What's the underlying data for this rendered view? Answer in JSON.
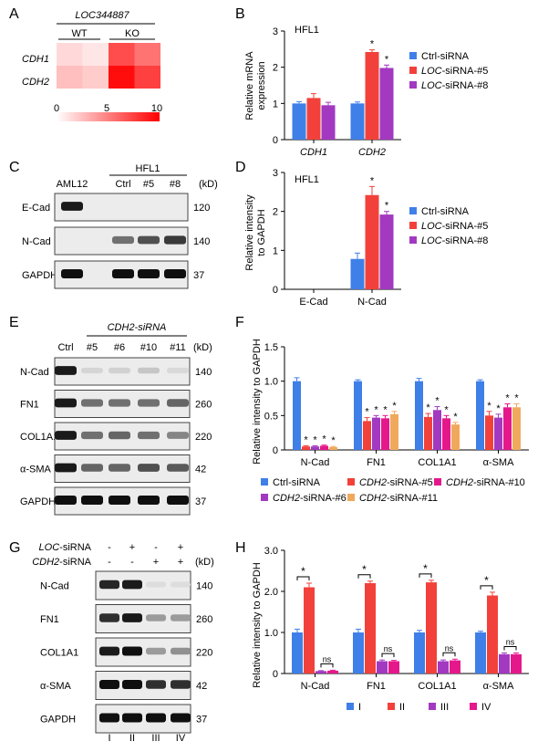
{
  "panels": {
    "A": {
      "letter": "A",
      "gene": "LOC344887",
      "groups": [
        "WT",
        "KO"
      ],
      "rows": [
        "CDH1",
        "CDH2"
      ],
      "cells": [
        [
          1.5,
          1.0,
          7.0,
          5.5
        ],
        [
          2.5,
          2.0,
          9.5,
          7.5
        ]
      ],
      "scale_ticks": [
        "0",
        "5",
        "10"
      ],
      "colors": {
        "low": "#ffffff",
        "high": "#ff0000"
      }
    },
    "B": {
      "letter": "B",
      "cell_line": "HFL1",
      "ylabel_1": "Relative mRNA",
      "ylabel_2": "expression",
      "legend": [
        {
          "prefix": "",
          "ital": "",
          "suffix": "Ctrl-siRNA",
          "color": "#3f7fe8"
        },
        {
          "prefix": "",
          "ital": "LOC",
          "suffix": "-siRNA-#5",
          "color": "#f2413a"
        },
        {
          "prefix": "",
          "ital": "LOC",
          "suffix": "-siRNA-#8",
          "color": "#a239c0"
        }
      ]
    },
    "C": {
      "letter": "C",
      "lanes": [
        "AML12",
        "Ctrl",
        "#5",
        "#8"
      ],
      "group_label": "HFL1",
      "kd_label": "(kD)",
      "rows": [
        {
          "label": "E-Cad",
          "kd": "120"
        },
        {
          "label": "N-Cad",
          "kd": "140"
        },
        {
          "label": "GAPDH",
          "kd": "37"
        }
      ]
    },
    "D": {
      "letter": "D",
      "cell_line": "HFL1",
      "ylabel_1": "Relative intensity",
      "ylabel_2": "to GAPDH",
      "legend": [
        {
          "prefix": "",
          "ital": "",
          "suffix": "Ctrl-siRNA",
          "color": "#3f7fe8"
        },
        {
          "prefix": "",
          "ital": "LOC",
          "suffix": "-siRNA-#5",
          "color": "#f2413a"
        },
        {
          "prefix": "",
          "ital": "LOC",
          "suffix": "-siRNA-#8",
          "color": "#a239c0"
        }
      ]
    },
    "E": {
      "letter": "E",
      "group_label": "CDH2-siRNA",
      "lanes": [
        "Ctrl",
        "#5",
        "#6",
        "#10",
        "#11"
      ],
      "kd_label": "(kD)",
      "rows": [
        {
          "label": "N-Cad",
          "kd": "140"
        },
        {
          "label": "FN1",
          "kd": "260"
        },
        {
          "label": "COL1A1",
          "kd": "220"
        },
        {
          "label": "α-SMA",
          "kd": "42"
        },
        {
          "label": "GAPDH",
          "kd": "37"
        }
      ]
    },
    "F": {
      "letter": "F",
      "ylabel": "Relative intensity to GAPDH",
      "legend": [
        {
          "prefix": "",
          "ital": "",
          "suffix": "Ctrl-siRNA",
          "color": "#3f7fe8"
        },
        {
          "prefix": "",
          "ital": "CDH2",
          "suffix": "-siRNA-#5",
          "color": "#f2413a"
        },
        {
          "prefix": "",
          "ital": "CDH2",
          "suffix": "-siRNA-#10",
          "color": "#e5188b"
        },
        {
          "prefix": "",
          "ital": "CDH2",
          "suffix": "-siRNA-#6",
          "color": "#a239c0"
        },
        {
          "prefix": "",
          "ital": "CDH2",
          "suffix": "-siRNA-#11",
          "color": "#f0a95c"
        }
      ]
    },
    "G": {
      "letter": "G",
      "treatments": [
        {
          "label_ital": "LOC",
          "label_suffix": "-siRNA",
          "signs": [
            "-",
            "+",
            "-",
            "+"
          ]
        },
        {
          "label_ital": "CDH2",
          "label_suffix": "-siRNA",
          "signs": [
            "-",
            "-",
            "+",
            "+"
          ]
        }
      ],
      "kd_label": "(kD)",
      "lane_numerals": [
        "I",
        "II",
        "III",
        "IV"
      ],
      "rows": [
        {
          "label": "N-Cad",
          "kd": "140"
        },
        {
          "label": "FN1",
          "kd": "260"
        },
        {
          "label": "COL1A1",
          "kd": "220"
        },
        {
          "label": "α-SMA",
          "kd": "42"
        },
        {
          "label": "GAPDH",
          "kd": "37"
        }
      ]
    },
    "H": {
      "letter": "H",
      "ylabel": "Relative intensity to GAPDH",
      "legend": [
        {
          "prefix": "",
          "ital": "",
          "suffix": "I",
          "color": "#3f7fe8"
        },
        {
          "prefix": "",
          "ital": "",
          "suffix": "II",
          "color": "#f2413a"
        },
        {
          "prefix": "",
          "ital": "",
          "suffix": "III",
          "color": "#a239c0"
        },
        {
          "prefix": "",
          "ital": "",
          "suffix": "IV",
          "color": "#e5188b"
        }
      ],
      "sig_labels": [
        "*",
        "ns"
      ]
    }
  },
  "chart_data": [
    {
      "panel": "B",
      "type": "bar",
      "categories": [
        "CDH1",
        "CDH2"
      ],
      "ylim": [
        0,
        3
      ],
      "yticks": [
        0,
        1,
        2,
        3
      ],
      "series": [
        {
          "name": "Ctrl-siRNA",
          "values": [
            1.0,
            1.0
          ],
          "errors": [
            0.05,
            0.04
          ],
          "color": "#3f7fe8"
        },
        {
          "name": "LOC-siRNA-#5",
          "values": [
            1.15,
            2.42
          ],
          "errors": [
            0.12,
            0.06
          ],
          "color": "#f2413a"
        },
        {
          "name": "LOC-siRNA-#8",
          "values": [
            0.95,
            1.98
          ],
          "errors": [
            0.08,
            0.08
          ],
          "color": "#a239c0"
        }
      ],
      "annotations": [
        [
          null,
          null
        ],
        [
          null,
          "*"
        ],
        [
          null,
          "*"
        ]
      ]
    },
    {
      "panel": "D",
      "type": "bar",
      "categories": [
        "E-Cad",
        "N-Cad"
      ],
      "ylim": [
        0,
        3
      ],
      "yticks": [
        0,
        1,
        2,
        3
      ],
      "series": [
        {
          "name": "Ctrl-siRNA",
          "values": [
            0,
            0.78
          ],
          "errors": [
            0,
            0.15
          ],
          "color": "#3f7fe8"
        },
        {
          "name": "LOC-siRNA-#5",
          "values": [
            0,
            2.42
          ],
          "errors": [
            0,
            0.22
          ],
          "color": "#f2413a"
        },
        {
          "name": "LOC-siRNA-#8",
          "values": [
            0,
            1.92
          ],
          "errors": [
            0,
            0.08
          ],
          "color": "#a239c0"
        }
      ],
      "annotations": [
        [
          null,
          null
        ],
        [
          null,
          "*"
        ],
        [
          null,
          "*"
        ]
      ]
    },
    {
      "panel": "F",
      "type": "bar",
      "categories": [
        "N-Cad",
        "FN1",
        "COL1A1",
        "α-SMA"
      ],
      "ylim": [
        0,
        1.5
      ],
      "yticks": [
        0,
        0.5,
        1.0,
        1.5
      ],
      "series": [
        {
          "name": "Ctrl-siRNA",
          "values": [
            1.0,
            1.0,
            1.0,
            1.0
          ],
          "errors": [
            0.05,
            0.02,
            0.04,
            0.02
          ],
          "color": "#3f7fe8"
        },
        {
          "name": "CDH2-siRNA-#5",
          "values": [
            0.05,
            0.42,
            0.48,
            0.5
          ],
          "errors": [
            0.01,
            0.05,
            0.05,
            0.06
          ],
          "color": "#f2413a"
        },
        {
          "name": "CDH2-siRNA-#6",
          "values": [
            0.05,
            0.47,
            0.58,
            0.47
          ],
          "errors": [
            0.01,
            0.03,
            0.05,
            0.05
          ],
          "color": "#a239c0"
        },
        {
          "name": "CDH2-siRNA-#10",
          "values": [
            0.06,
            0.46,
            0.46,
            0.62
          ],
          "errors": [
            0.01,
            0.04,
            0.04,
            0.05
          ],
          "color": "#e5188b"
        },
        {
          "name": "CDH2-siRNA-#11",
          "values": [
            0.04,
            0.52,
            0.37,
            0.62
          ],
          "errors": [
            0.01,
            0.04,
            0.03,
            0.05
          ],
          "color": "#f0a95c"
        }
      ],
      "annotations": [
        [
          null,
          null,
          null,
          null
        ],
        [
          "*",
          "*",
          "*",
          "*"
        ],
        [
          "*",
          "*",
          "*",
          "*"
        ],
        [
          "*",
          "*",
          "*",
          "*"
        ],
        [
          "*",
          "*",
          "*",
          "*"
        ]
      ]
    },
    {
      "panel": "H",
      "type": "bar",
      "categories": [
        "N-Cad",
        "FN1",
        "COL1A1",
        "α-SMA"
      ],
      "ylim": [
        0,
        3.0
      ],
      "yticks": [
        0,
        1.0,
        2.0,
        3.0
      ],
      "series": [
        {
          "name": "I",
          "values": [
            1.0,
            1.0,
            1.0,
            1.0
          ],
          "errors": [
            0.08,
            0.08,
            0.05,
            0.03
          ],
          "color": "#3f7fe8"
        },
        {
          "name": "II",
          "values": [
            2.1,
            2.2,
            2.22,
            1.9
          ],
          "errors": [
            0.1,
            0.05,
            0.05,
            0.08
          ],
          "color": "#f2413a"
        },
        {
          "name": "III",
          "values": [
            0.06,
            0.3,
            0.3,
            0.47
          ],
          "errors": [
            0.01,
            0.03,
            0.03,
            0.03
          ],
          "color": "#a239c0"
        },
        {
          "name": "IV",
          "values": [
            0.07,
            0.3,
            0.32,
            0.47
          ],
          "errors": [
            0.01,
            0.02,
            0.03,
            0.03
          ],
          "color": "#e5188b"
        }
      ],
      "brackets": [
        {
          "from": 0,
          "to": 1,
          "label": "*"
        },
        {
          "from": 2,
          "to": 3,
          "label": "ns"
        }
      ]
    }
  ]
}
